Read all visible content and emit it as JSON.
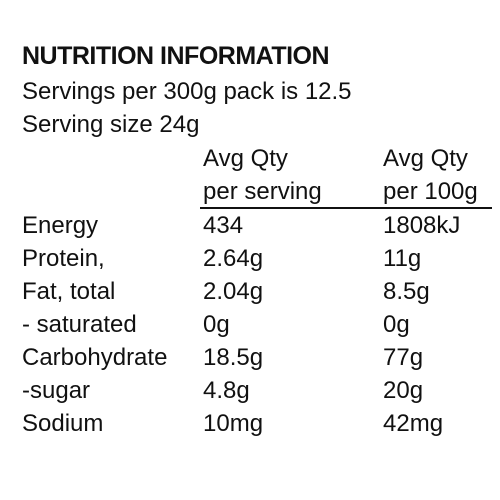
{
  "header": {
    "title": "NUTRITION INFORMATION",
    "servings": "Servings per 300g pack is 12.5",
    "serving_size": "Serving size 24g"
  },
  "table": {
    "columns": [
      [
        "Avg Qty",
        "per serving"
      ],
      [
        "Avg Qty",
        "per 100g"
      ]
    ],
    "rows": [
      [
        "Energy",
        "434",
        "1808kJ"
      ],
      [
        "Protein,",
        "2.64g",
        "11g"
      ],
      [
        "Fat, total",
        "2.04g",
        "8.5g"
      ],
      [
        "- saturated",
        "0g",
        "0g"
      ],
      [
        "Carbohydrate",
        "18.5g",
        "77g"
      ],
      [
        "-sugar",
        "4.8g",
        "20g"
      ],
      [
        "Sodium",
        "10mg",
        "42mg"
      ]
    ]
  }
}
